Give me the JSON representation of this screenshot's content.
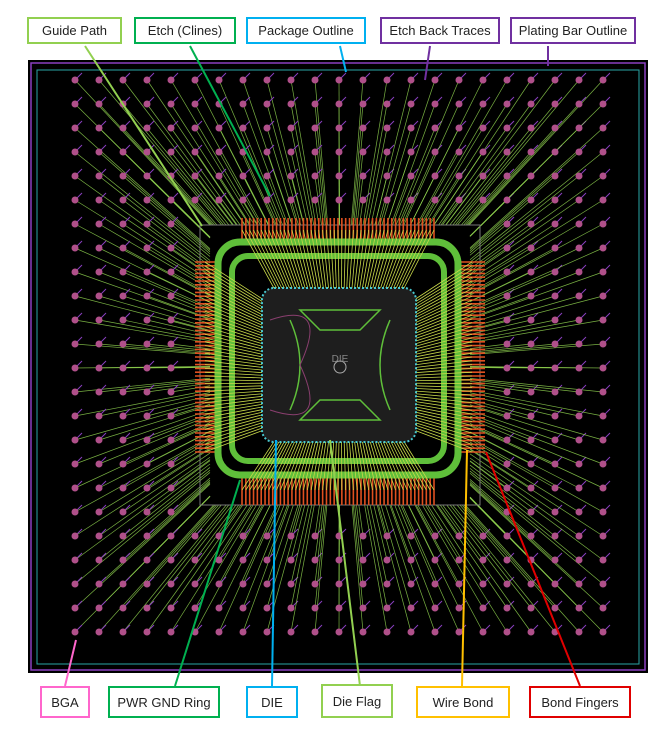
{
  "callouts_top": [
    {
      "label": "Guide Path"
    },
    {
      "label": "Etch (Clines)"
    },
    {
      "label": "Package Outline"
    },
    {
      "label": "Etch Back Traces"
    },
    {
      "label": "Plating Bar Outline"
    }
  ],
  "callouts_bottom": [
    {
      "label": "BGA"
    },
    {
      "label": "PWR GND Ring"
    },
    {
      "label": "DIE"
    },
    {
      "label": "Die Flag"
    },
    {
      "label": "Wire Bond"
    },
    {
      "label": "Bond Fingers"
    }
  ],
  "die_text": "DIE"
}
